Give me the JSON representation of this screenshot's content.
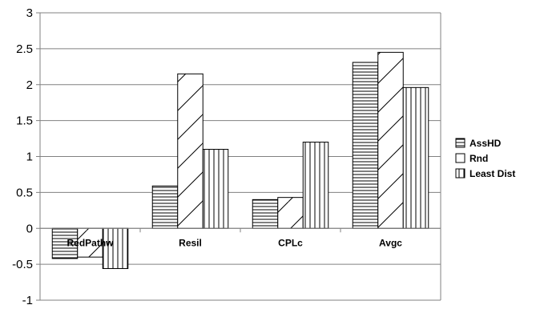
{
  "chart_data": {
    "type": "bar",
    "categories": [
      "RedPathw",
      "Resil",
      "CPLc",
      "Avgc"
    ],
    "series": [
      {
        "name": "AssHD",
        "pattern": "horizontal",
        "values": [
          -0.42,
          0.59,
          0.4,
          2.31
        ]
      },
      {
        "name": "Rnd",
        "pattern": "diagonal",
        "values": [
          -0.4,
          2.15,
          0.43,
          2.45
        ]
      },
      {
        "name": "Least Dist",
        "pattern": "vertical",
        "values": [
          -0.56,
          1.1,
          1.2,
          1.96
        ]
      }
    ],
    "y_ticks": [
      "3",
      "2.5",
      "2",
      "1.5",
      "1",
      "0.5",
      "0",
      "-0.5",
      "-1"
    ],
    "ylim": [
      -1,
      3
    ],
    "ytick_step": 0.5,
    "grid": true,
    "legend_position": "right",
    "colors": {
      "bar_fill": "#ffffff",
      "bar_stroke": "#000000",
      "grid": "#808080",
      "axis": "#808080"
    }
  }
}
